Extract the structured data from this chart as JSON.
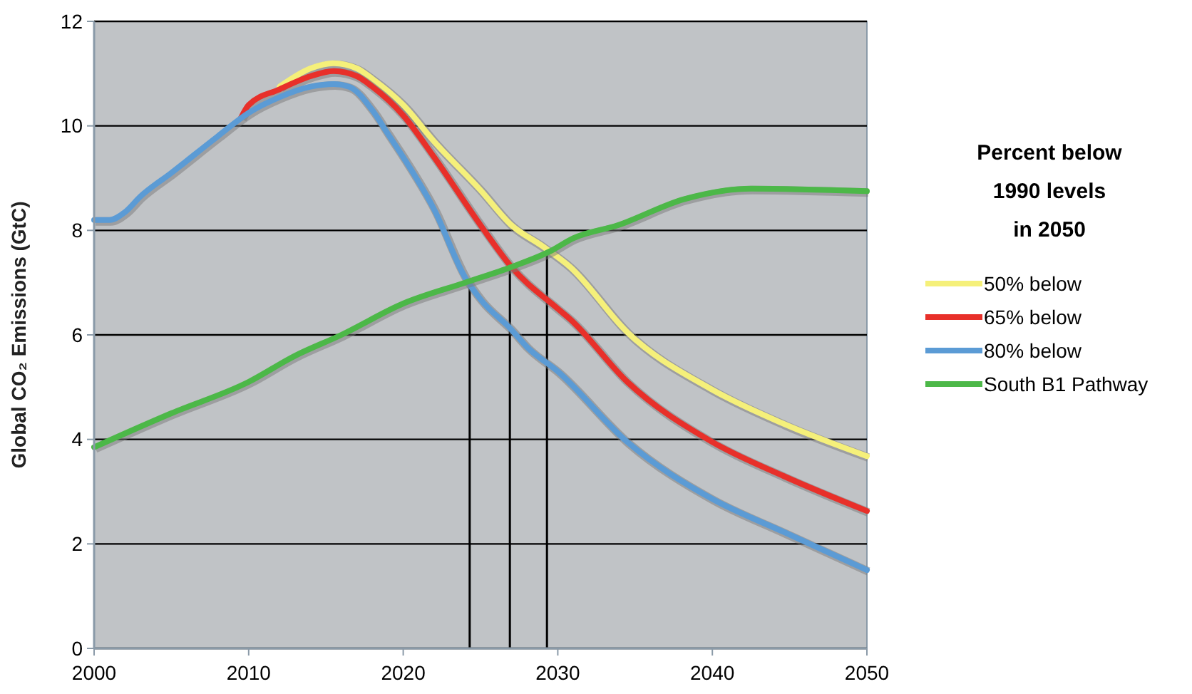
{
  "chart_data": {
    "type": "line",
    "ylabel": "Global CO₂ Emissions (GtC)",
    "legend_title": "Percent below 1990 levels in 2050",
    "xlim": [
      2000,
      2050
    ],
    "xticks": [
      2000,
      2010,
      2020,
      2030,
      2040,
      2050
    ],
    "ylim": [
      0,
      12
    ],
    "yticks": [
      0,
      2,
      4,
      6,
      8,
      10,
      12
    ],
    "grid": "y",
    "legend": "right",
    "line_style": "solid",
    "marker": "none",
    "ref_lines": [
      {
        "axis": "x",
        "value": 2024.3,
        "color": "#000000"
      },
      {
        "axis": "x",
        "value": 2026.9,
        "color": "#000000"
      },
      {
        "axis": "x",
        "value": 2029.3,
        "color": "#000000"
      }
    ],
    "series": [
      {
        "name": "50% below",
        "color": "#f5f07a",
        "x": [
          2012,
          2014,
          2015.5,
          2017,
          2018,
          2020,
          2022,
          2025,
          2027,
          2029,
          2030.8,
          2034.5,
          2040,
          2044.6,
          2050
        ],
        "values": [
          10.75,
          11.1,
          11.2,
          11.1,
          10.9,
          10.4,
          9.7,
          8.77,
          8.1,
          7.7,
          7.3,
          6.05,
          4.95,
          4.3,
          3.68
        ]
      },
      {
        "name": "65% below",
        "color": "#e8302a",
        "x": [
          2009.5,
          2010,
          2012,
          2014,
          2015.5,
          2017,
          2018,
          2020,
          2022,
          2025,
          2027,
          2030,
          2030.8,
          2034.5,
          2040,
          2044.6,
          2050
        ],
        "values": [
          10.15,
          10.4,
          10.7,
          10.95,
          11.05,
          10.95,
          10.75,
          10.2,
          9.4,
          8.1,
          7.3,
          6.5,
          6.3,
          5.1,
          3.95,
          3.3,
          2.63
        ]
      },
      {
        "name": "80% below",
        "color": "#5b9bd5",
        "x": [
          2000,
          2001,
          2002,
          2003,
          2005,
          2008,
          2010,
          2012,
          2014,
          2015.5,
          2016.5,
          2018,
          2019,
          2020,
          2022,
          2024,
          2025,
          2027,
          2028,
          2030,
          2034.5,
          2040,
          2044.6,
          2050
        ],
        "values": [
          8.2,
          8.2,
          8.35,
          8.65,
          9.1,
          9.8,
          10.25,
          10.55,
          10.75,
          10.8,
          10.75,
          10.3,
          9.85,
          9.4,
          8.4,
          7.1,
          6.68,
          6.1,
          5.77,
          5.3,
          3.95,
          2.86,
          2.23,
          1.5
        ]
      },
      {
        "name": "South B1 Pathway",
        "color": "#4cb848",
        "x": [
          2000,
          2005,
          2010,
          2013,
          2016,
          2020,
          2024,
          2027,
          2029.5,
          2031,
          2033.9,
          2038.2,
          2042.5,
          2050
        ],
        "values": [
          3.85,
          4.5,
          5.1,
          5.6,
          6.0,
          6.6,
          7.0,
          7.3,
          7.6,
          7.85,
          8.1,
          8.6,
          8.8,
          8.75
        ]
      }
    ]
  }
}
